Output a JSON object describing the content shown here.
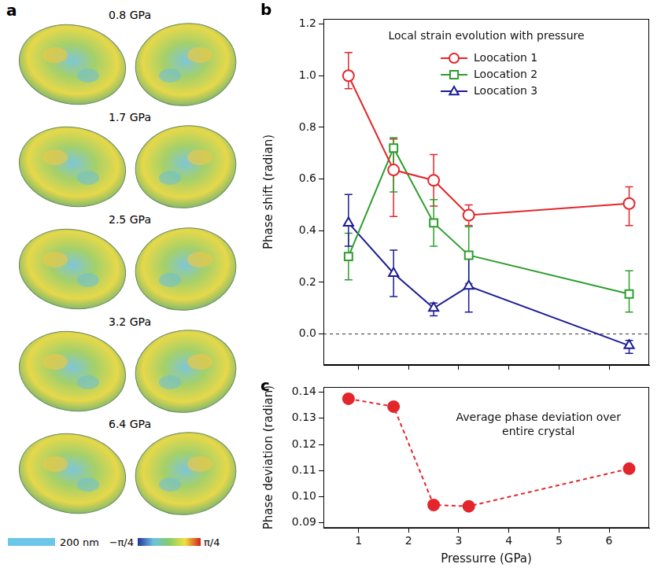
{
  "panel_a": {
    "panel_label": "a",
    "pressures": [
      "0.8 GPa",
      "1.7 GPa",
      "2.5 GPa",
      "3.2 GPa",
      "6.4 GPa"
    ],
    "scale_bar": "200 nm",
    "colorbar": {
      "min_label": "−π/4",
      "max_label": "π/4"
    }
  },
  "chart_data": [
    {
      "type": "line",
      "panel_label": "b",
      "annotation": "Local strain evolution with pressure",
      "y_label": "Phase shift (radian)",
      "x": [
        0.8,
        1.7,
        2.5,
        3.2,
        6.4
      ],
      "series": [
        {
          "name": "Loocation 1",
          "color": "#e3262b",
          "marker": "open_circle",
          "line_style": "solid",
          "values": [
            1.0,
            0.635,
            0.595,
            0.46,
            0.505
          ],
          "error_minus": [
            0.05,
            0.18,
            0.1,
            0.04,
            0.085
          ],
          "error_plus": [
            0.09,
            0.12,
            0.1,
            0.04,
            0.065
          ]
        },
        {
          "name": "Loocation 2",
          "color": "#2e9e2e",
          "marker": "open_square",
          "line_style": "solid",
          "values": [
            0.3,
            0.72,
            0.43,
            0.305,
            0.155
          ],
          "error_minus": [
            0.09,
            0.17,
            0.09,
            0.11,
            0.07
          ],
          "error_plus": [
            0.09,
            0.04,
            0.09,
            0.11,
            0.09
          ]
        },
        {
          "name": "Loocation 3",
          "color": "#1c1c96",
          "marker": "open_triangle",
          "line_style": "solid",
          "values": [
            0.43,
            0.235,
            0.1,
            0.185,
            -0.045
          ],
          "error_minus": [
            0.09,
            0.09,
            0.03,
            0.1,
            0.03
          ],
          "error_plus": [
            0.11,
            0.09,
            0.02,
            0.11,
            0.02
          ]
        }
      ],
      "reference_line": {
        "value": 0,
        "line_style": "dashed"
      },
      "xlim": [
        0.3,
        6.8
      ],
      "xticks": [
        1,
        2,
        3,
        4,
        5,
        6
      ],
      "ylim": [
        -0.12,
        1.22
      ],
      "yticks": [
        {
          "value": 0,
          "label": "0.0"
        },
        {
          "value": 0.2,
          "label": "0.2"
        },
        {
          "value": 0.4,
          "label": "0.4"
        },
        {
          "value": 0.6,
          "label": "0.6"
        },
        {
          "value": 0.8,
          "label": "0.8"
        },
        {
          "value": 1,
          "label": "1.0"
        },
        {
          "value": 1.2,
          "label": "1.2"
        }
      ],
      "legend": "top",
      "grid": false,
      "tick_labels": "y"
    },
    {
      "type": "line",
      "panel_label": "c",
      "annotation": "Average phase deviation over entire crystal",
      "x_label": "Pressurre (GPa)",
      "y_label": "Phase deviation (radian)",
      "x": [
        0.8,
        1.7,
        2.5,
        3.2,
        6.4
      ],
      "values": [
        0.1375,
        0.1345,
        0.0968,
        0.0963,
        0.1107
      ],
      "color": "#e3262b",
      "marker": "filled_circle",
      "line_style": "dashed",
      "xlim": [
        0.3,
        6.8
      ],
      "xticks": [
        1,
        2,
        3,
        4,
        5,
        6
      ],
      "ylim": [
        0.088,
        0.142
      ],
      "yticks": [
        0.09,
        {
          "value": 0.1,
          "label": "0.10"
        },
        0.11,
        0.12,
        0.13,
        0.14
      ],
      "grid": false
    }
  ]
}
